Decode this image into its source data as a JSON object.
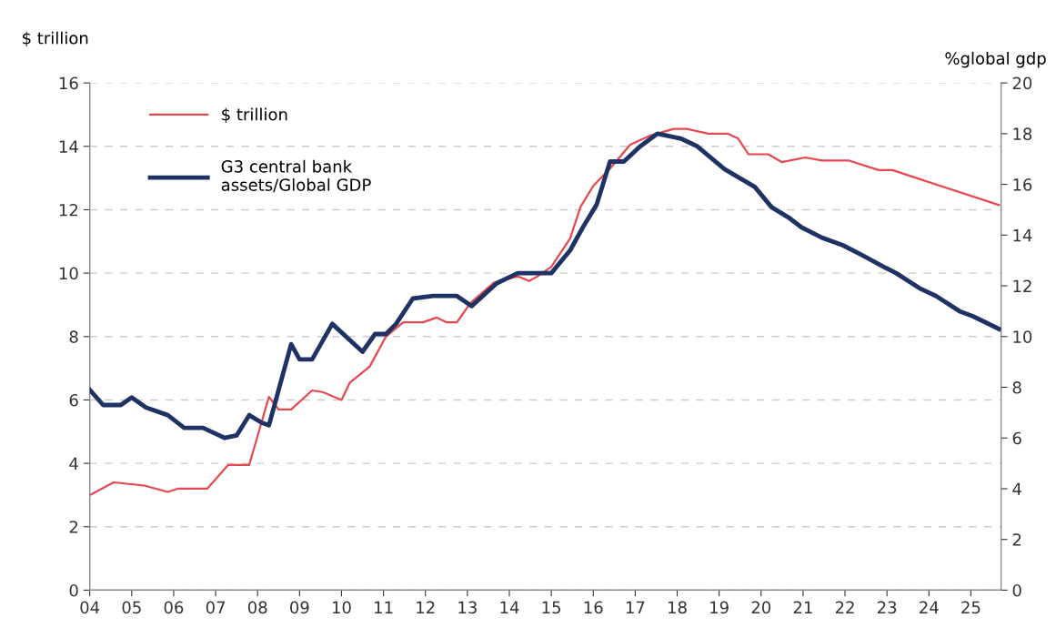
{
  "chart_data": {
    "type": "line",
    "ylabel": "$ trillion",
    "y2label": "%global gdp",
    "xlim": [
      2004,
      2025.72
    ],
    "xticks": [
      {
        "value": 2004,
        "label": "04"
      },
      {
        "value": 2005,
        "label": "05"
      },
      {
        "value": 2006,
        "label": "06"
      },
      {
        "value": 2007,
        "label": "07"
      },
      {
        "value": 2008,
        "label": "08"
      },
      {
        "value": 2009,
        "label": "09"
      },
      {
        "value": 2010,
        "label": "10"
      },
      {
        "value": 2011,
        "label": "11"
      },
      {
        "value": 2012,
        "label": "12"
      },
      {
        "value": 2013,
        "label": "13"
      },
      {
        "value": 2014,
        "label": "14"
      },
      {
        "value": 2015,
        "label": "15"
      },
      {
        "value": 2016,
        "label": "16"
      },
      {
        "value": 2017,
        "label": "17"
      },
      {
        "value": 2018,
        "label": "18"
      },
      {
        "value": 2019,
        "label": "19"
      },
      {
        "value": 2020,
        "label": "20"
      },
      {
        "value": 2021,
        "label": "21"
      },
      {
        "value": 2022,
        "label": "22"
      },
      {
        "value": 2023,
        "label": "23"
      },
      {
        "value": 2024,
        "label": "24"
      },
      {
        "value": 2025,
        "label": "25"
      }
    ],
    "ylim": [
      0,
      16
    ],
    "yticks": [
      0,
      2,
      4,
      6,
      8,
      10,
      12,
      14,
      16
    ],
    "y2lim": [
      0,
      20
    ],
    "y2ticks": [
      0,
      2,
      4,
      6,
      8,
      10,
      12,
      14,
      16,
      18,
      20
    ],
    "grid": "y",
    "legend": "top left",
    "line_style": "solid",
    "marker": "none",
    "series": [
      {
        "name": "$ trillion",
        "color": "#e8474f",
        "x": [
          2004.0,
          2004.57,
          2005.3,
          2005.86,
          2006.1,
          2006.8,
          2007.3,
          2007.8,
          2008.27,
          2008.5,
          2008.8,
          2009.3,
          2009.55,
          2010.0,
          2010.2,
          2010.67,
          2011.06,
          2011.47,
          2011.94,
          2012.27,
          2012.5,
          2012.75,
          2013.07,
          2013.63,
          2014.2,
          2014.47,
          2014.67,
          2015.0,
          2015.45,
          2015.7,
          2016.0,
          2016.4,
          2016.88,
          2017.38,
          2017.92,
          2018.24,
          2018.74,
          2019.2,
          2019.45,
          2019.7,
          2020.17,
          2020.5,
          2021.05,
          2021.45,
          2022.1,
          2022.8,
          2023.13,
          2025.67
        ],
        "values": [
          3.0,
          3.4,
          3.3,
          3.1,
          3.2,
          3.2,
          3.95,
          3.95,
          6.1,
          5.7,
          5.7,
          6.3,
          6.25,
          6.0,
          6.55,
          7.05,
          8.0,
          8.45,
          8.45,
          8.6,
          8.45,
          8.45,
          9.05,
          9.7,
          9.9,
          9.75,
          9.9,
          10.2,
          11.1,
          12.1,
          12.75,
          13.3,
          14.05,
          14.35,
          14.55,
          14.55,
          14.4,
          14.4,
          14.25,
          13.75,
          13.75,
          13.5,
          13.65,
          13.55,
          13.55,
          13.25,
          13.25,
          12.15
        ]
      },
      {
        "name": "G3 central bank\nassets/Global GDP",
        "color": "#1f3264",
        "axis": "y2",
        "x": [
          2004.0,
          2004.32,
          2004.74,
          2005.0,
          2005.34,
          2005.86,
          2006.25,
          2006.7,
          2007.22,
          2007.5,
          2007.8,
          2008.1,
          2008.27,
          2008.8,
          2009.0,
          2009.3,
          2009.78,
          2010.5,
          2010.8,
          2011.06,
          2011.3,
          2011.7,
          2012.18,
          2012.75,
          2013.1,
          2013.7,
          2014.2,
          2014.76,
          2015.0,
          2015.45,
          2015.75,
          2016.08,
          2016.4,
          2016.73,
          2017.12,
          2017.53,
          2018.1,
          2018.48,
          2019.13,
          2019.85,
          2020.25,
          2020.65,
          2020.97,
          2021.45,
          2021.95,
          2022.42,
          2022.98,
          2023.22,
          2023.78,
          2024.17,
          2024.73,
          2025.05,
          2025.67
        ],
        "values": [
          7.9,
          7.3,
          7.3,
          7.6,
          7.2,
          6.9,
          6.4,
          6.4,
          6.0,
          6.1,
          6.9,
          6.6,
          6.5,
          9.7,
          9.1,
          9.1,
          10.5,
          9.4,
          10.1,
          10.1,
          10.5,
          11.5,
          11.6,
          11.6,
          11.2,
          12.1,
          12.5,
          12.5,
          12.5,
          13.4,
          14.3,
          15.2,
          16.9,
          16.9,
          17.5,
          18.0,
          17.8,
          17.5,
          16.6,
          15.9,
          15.1,
          14.7,
          14.3,
          13.9,
          13.6,
          13.2,
          12.7,
          12.5,
          11.9,
          11.6,
          11.0,
          10.8,
          10.3
        ]
      }
    ]
  }
}
